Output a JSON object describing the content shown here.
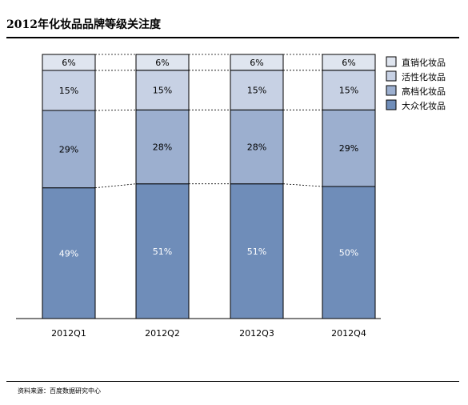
{
  "header": {
    "title": "2012年化妆品品牌等级关注度"
  },
  "footer": {
    "source": "资料来源：百度数据研究中心"
  },
  "colors": {
    "mass": "#6f8db9",
    "premium": "#9cafcf",
    "active": "#c7d1e4",
    "direct": "#dfe5ef",
    "stroke": "#000000"
  },
  "chart_data": {
    "type": "bar",
    "stacked": true,
    "percent": true,
    "categories": [
      "2012Q1",
      "2012Q2",
      "2012Q3",
      "2012Q4"
    ],
    "series": [
      {
        "name": "大众化妆品",
        "values": [
          49,
          51,
          51,
          50
        ],
        "color": "#6f8db9",
        "label_color": "#ffffff"
      },
      {
        "name": "高档化妆品",
        "values": [
          29,
          28,
          28,
          29
        ],
        "color": "#9cafcf",
        "label_color": "#000000"
      },
      {
        "name": "活性化妆品",
        "values": [
          15,
          15,
          15,
          15
        ],
        "color": "#c7d1e4",
        "label_color": "#000000"
      },
      {
        "name": "直销化妆品",
        "values": [
          6,
          6,
          6,
          6
        ],
        "color": "#dfe5ef",
        "label_color": "#000000"
      }
    ],
    "value_suffix": "%",
    "legend_order": [
      "直销化妆品",
      "活性化妆品",
      "高档化妆品",
      "大众化妆品"
    ],
    "legend_position": "right",
    "connector_lines": true,
    "grid": false
  }
}
